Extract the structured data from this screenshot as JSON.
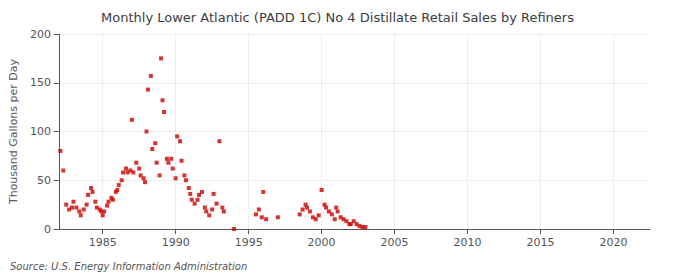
{
  "chart_data": {
    "type": "scatter",
    "title": "Monthly Lower Atlantic (PADD 1C) No 4 Distillate Retail Sales by Refiners",
    "ylabel": "Thousand Gallons per Day",
    "annotations": [
      "Source: U.S. Energy Information Administration"
    ],
    "color": "#cc0000",
    "marker": "square",
    "grid": true,
    "xlim": [
      1982.0,
      2022.5
    ],
    "ylim": [
      0,
      200
    ],
    "xticks": [
      1985,
      1990,
      1995,
      2000,
      2005,
      2010,
      2015,
      2020
    ],
    "yticks": [
      0,
      50,
      100,
      150,
      200
    ],
    "x": [
      1982.1,
      1982.3,
      1982.5,
      1982.7,
      1982.9,
      1983.0,
      1983.2,
      1983.4,
      1983.5,
      1983.7,
      1983.9,
      1984.0,
      1984.2,
      1984.3,
      1984.5,
      1984.6,
      1984.8,
      1984.9,
      1985.0,
      1985.1,
      1985.3,
      1985.4,
      1985.6,
      1985.7,
      1985.9,
      1986.0,
      1986.1,
      1986.3,
      1986.4,
      1986.6,
      1986.7,
      1986.9,
      1987.0,
      1987.1,
      1987.3,
      1987.5,
      1987.6,
      1987.8,
      1987.9,
      1988.0,
      1988.1,
      1988.3,
      1988.4,
      1988.6,
      1988.7,
      1988.9,
      1989.0,
      1989.1,
      1989.2,
      1989.4,
      1989.5,
      1989.7,
      1989.8,
      1990.0,
      1990.1,
      1990.3,
      1990.4,
      1990.6,
      1990.7,
      1990.9,
      1991.0,
      1991.1,
      1991.3,
      1991.5,
      1991.6,
      1991.8,
      1992.0,
      1992.1,
      1992.3,
      1992.5,
      1992.6,
      1992.8,
      1993.0,
      1993.2,
      1993.3,
      1994.0,
      1995.5,
      1995.7,
      1995.9,
      1996.0,
      1996.2,
      1997.0,
      1998.5,
      1998.7,
      1998.9,
      1999.0,
      1999.2,
      1999.4,
      1999.6,
      1999.8,
      2000.0,
      2000.2,
      2000.3,
      2000.5,
      2000.7,
      2000.9,
      2001.0,
      2001.1,
      2001.3,
      2001.5,
      2001.7,
      2001.9,
      2002.0,
      2002.2,
      2002.4,
      2002.6,
      2002.8,
      2003.0
    ],
    "values": [
      80,
      60,
      25,
      20,
      22,
      28,
      22,
      18,
      14,
      20,
      25,
      35,
      42,
      38,
      28,
      22,
      20,
      18,
      14,
      18,
      24,
      28,
      32,
      30,
      38,
      40,
      45,
      50,
      58,
      62,
      58,
      60,
      112,
      58,
      68,
      62,
      55,
      52,
      48,
      100,
      143,
      157,
      82,
      88,
      68,
      55,
      175,
      132,
      120,
      72,
      68,
      72,
      62,
      52,
      95,
      90,
      70,
      55,
      50,
      42,
      36,
      30,
      26,
      30,
      35,
      38,
      22,
      18,
      14,
      20,
      36,
      26,
      90,
      22,
      18,
      0,
      15,
      20,
      12,
      38,
      10,
      12,
      15,
      20,
      25,
      22,
      18,
      12,
      10,
      14,
      40,
      25,
      22,
      18,
      15,
      10,
      22,
      18,
      12,
      10,
      8,
      5,
      5,
      8,
      5,
      3,
      2,
      2
    ]
  }
}
